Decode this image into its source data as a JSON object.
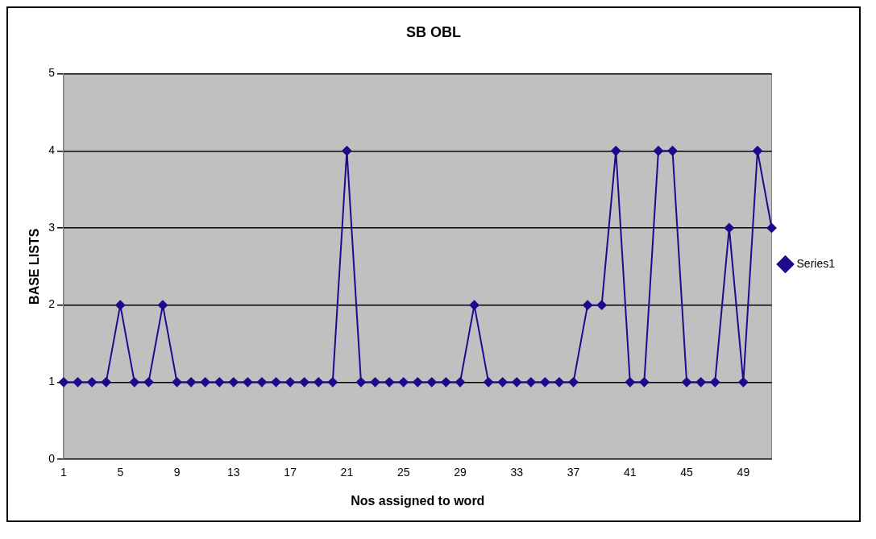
{
  "chart_data": {
    "type": "line",
    "title": "SB OBL",
    "xlabel": "Nos assigned to word",
    "ylabel": "BASE LISTS",
    "categories": [
      "1",
      null,
      null,
      null,
      "5",
      null,
      null,
      null,
      "9",
      null,
      null,
      null,
      "13",
      null,
      null,
      null,
      "17",
      null,
      null,
      null,
      "21",
      null,
      null,
      null,
      "25",
      null,
      null,
      null,
      "29",
      null,
      null,
      null,
      "33",
      null,
      null,
      null,
      "37",
      null,
      null,
      null,
      "41",
      null,
      null,
      null,
      "45",
      null,
      null,
      null,
      "49",
      null,
      null
    ],
    "series": [
      {
        "name": "Series1",
        "color": "#1e0a8c",
        "values": [
          1,
          1,
          1,
          1,
          2,
          1,
          1,
          2,
          1,
          1,
          1,
          1,
          1,
          1,
          1,
          1,
          1,
          1,
          1,
          1,
          4,
          1,
          1,
          1,
          1,
          1,
          1,
          1,
          1,
          2,
          1,
          1,
          1,
          1,
          1,
          1,
          1,
          2,
          2,
          4,
          1,
          1,
          4,
          4,
          1,
          1,
          1,
          3,
          1,
          4,
          3
        ]
      }
    ],
    "ylim": [
      0,
      5
    ],
    "yticks": [
      0,
      1,
      2,
      3,
      4,
      5
    ],
    "grid": "y",
    "legend": "right",
    "marker": "diamond",
    "line_style": "solid"
  }
}
